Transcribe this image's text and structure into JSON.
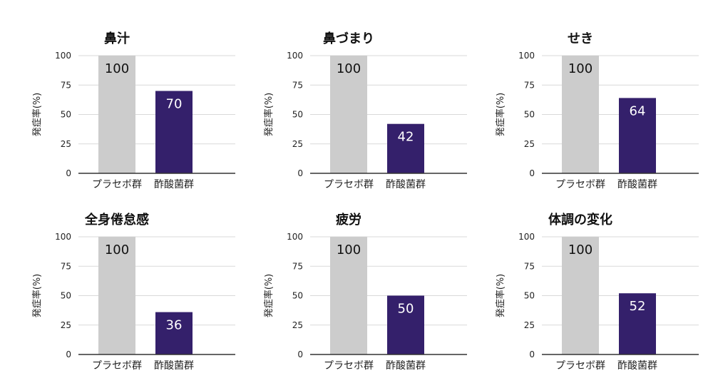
{
  "colors": {
    "placebo": "#cccccc",
    "treatment": "#34206b",
    "placebo_label": "#111111",
    "treatment_label": "#ffffff",
    "grid": "#d9d9d9",
    "axis": "#333333"
  },
  "chart_data": [
    {
      "type": "bar",
      "title": "鼻汁",
      "ylabel": "発症率(%)",
      "categories": [
        "プラセボ群",
        "酢酸菌群"
      ],
      "values": [
        100,
        70
      ],
      "ylim": [
        0,
        100
      ],
      "yticks": [
        "0",
        "25",
        "50",
        "75",
        "100"
      ],
      "grid": true
    },
    {
      "type": "bar",
      "title": "鼻づまり",
      "ylabel": "発症率(%)",
      "categories": [
        "プラセボ群",
        "酢酸菌群"
      ],
      "values": [
        100,
        42
      ],
      "ylim": [
        0,
        100
      ],
      "yticks": [
        "0",
        "25",
        "50",
        "75",
        "100"
      ],
      "grid": true
    },
    {
      "type": "bar",
      "title": "せき",
      "ylabel": "発症率(%)",
      "categories": [
        "プラセボ群",
        "酢酸菌群"
      ],
      "values": [
        100,
        64
      ],
      "ylim": [
        0,
        100
      ],
      "yticks": [
        "0",
        "25",
        "50",
        "75",
        "100"
      ],
      "grid": true
    },
    {
      "type": "bar",
      "title": "全身倦怠感",
      "ylabel": "発症率(%)",
      "categories": [
        "プラセボ群",
        "酢酸菌群"
      ],
      "values": [
        100,
        36
      ],
      "ylim": [
        0,
        100
      ],
      "yticks": [
        "0",
        "25",
        "50",
        "75",
        "100"
      ],
      "grid": true
    },
    {
      "type": "bar",
      "title": "疲労",
      "ylabel": "発症率(%)",
      "categories": [
        "プラセボ群",
        "酢酸菌群"
      ],
      "values": [
        100,
        50
      ],
      "ylim": [
        0,
        100
      ],
      "yticks": [
        "0",
        "25",
        "50",
        "75",
        "100"
      ],
      "grid": true
    },
    {
      "type": "bar",
      "title": "体調の変化",
      "ylabel": "発症率(%)",
      "categories": [
        "プラセボ群",
        "酢酸菌群"
      ],
      "values": [
        100,
        52
      ],
      "ylim": [
        0,
        100
      ],
      "yticks": [
        "0",
        "25",
        "50",
        "75",
        "100"
      ],
      "grid": true
    }
  ]
}
